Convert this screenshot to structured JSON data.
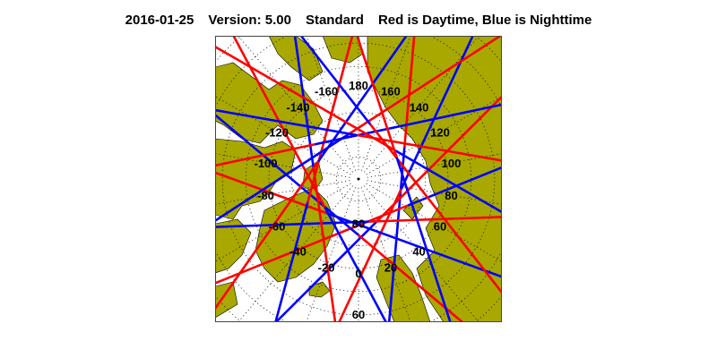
{
  "header": {
    "date": "2016-01-25",
    "version": "Version: 5.00",
    "mode": "Standard",
    "legend_text": "Red is Daytime, Blue is Nighttime"
  },
  "map": {
    "projection": "north-polar-stereographic",
    "longitude_labels": [
      "0",
      "20",
      "40",
      "60",
      "80",
      "100",
      "120",
      "140",
      "160",
      "180",
      "-160",
      "-140",
      "-120",
      "-100",
      "-80",
      "-60",
      "-40",
      "-20"
    ],
    "longitude_values": [
      0,
      20,
      40,
      60,
      80,
      100,
      120,
      140,
      160,
      180,
      -160,
      -140,
      -120,
      -100,
      -80,
      -60,
      -40,
      -20
    ],
    "latitude_labels": [
      "80",
      "60"
    ],
    "latitude_values": [
      80,
      60
    ],
    "colors": {
      "land": "#a8a800",
      "day": "#ff0000",
      "night": "#0000ff",
      "grid": "#000000"
    }
  }
}
